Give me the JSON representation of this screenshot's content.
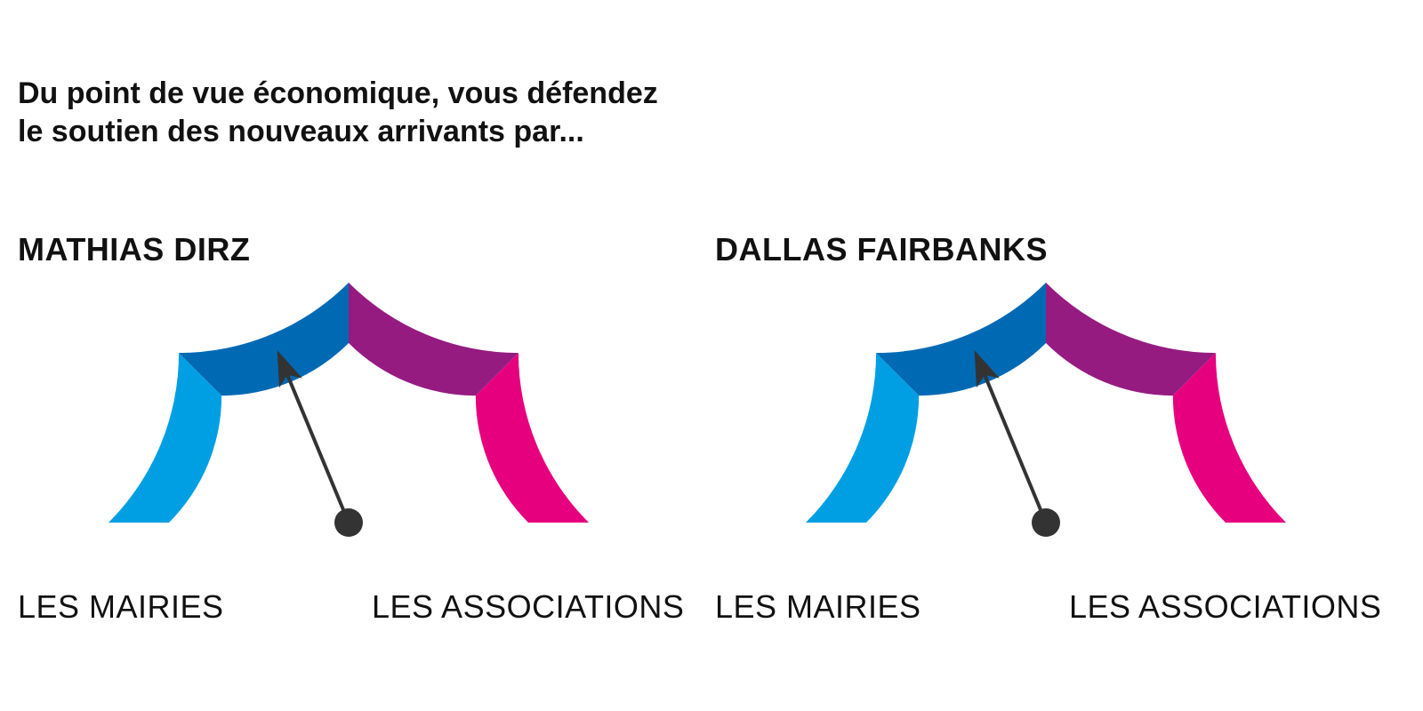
{
  "question": {
    "line1": "Du point de vue économique, vous défendez",
    "line2": "le soutien des nouveaux arrivants par..."
  },
  "gauges": [
    {
      "name": "MATHIAS DIRZ",
      "left_label": "LES MAIRIES",
      "right_label": "LES ASSOCIATIONS",
      "needle_fraction": 0.375
    },
    {
      "name": "DALLAS FAIRBANKS",
      "left_label": "LES MAIRIES",
      "right_label": "LES ASSOCIATIONS",
      "needle_fraction": 0.375
    }
  ],
  "colors": {
    "segments": [
      "#009fe3",
      "#0069b4",
      "#951b81",
      "#e6007e"
    ],
    "needle": "#333333",
    "text": "#111111"
  }
}
